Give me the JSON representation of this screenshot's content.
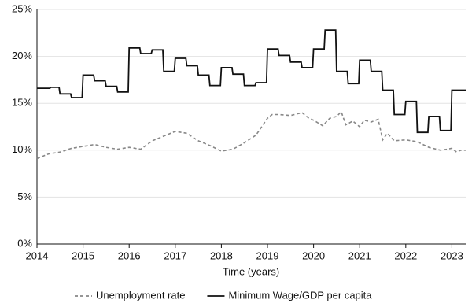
{
  "chart_data": {
    "type": "line",
    "xlabel": "Time (years)",
    "xlim": [
      2014,
      2023.3
    ],
    "xticks": [
      2014,
      2015,
      2016,
      2017,
      2018,
      2019,
      2020,
      2021,
      2022,
      2023
    ],
    "ylim": [
      0,
      25
    ],
    "yticks": [
      {
        "value": 0,
        "label": "0%"
      },
      {
        "value": 5,
        "label": "5%"
      },
      {
        "value": 10,
        "label": "10%"
      },
      {
        "value": 15,
        "label": "15%"
      },
      {
        "value": 20,
        "label": "20%"
      },
      {
        "value": 25,
        "label": "25%"
      }
    ],
    "grid": true,
    "legend": "bottom",
    "series": [
      {
        "name": "Unemployment rate",
        "color": "#888888",
        "dash": true,
        "x": [
          2014.0,
          2014.25,
          2014.5,
          2014.75,
          2015.0,
          2015.25,
          2015.5,
          2015.75,
          2016.0,
          2016.25,
          2016.5,
          2016.75,
          2017.0,
          2017.25,
          2017.5,
          2017.75,
          2018.0,
          2018.25,
          2018.5,
          2018.75,
          2019.0,
          2019.1,
          2019.25,
          2019.5,
          2019.75,
          2019.9,
          2020.0,
          2020.2,
          2020.35,
          2020.5,
          2020.6,
          2020.7,
          2020.85,
          2021.0,
          2021.1,
          2021.25,
          2021.4,
          2021.5,
          2021.6,
          2021.75,
          2022.0,
          2022.25,
          2022.5,
          2022.75,
          2022.9,
          2023.0,
          2023.1,
          2023.2,
          2023.3
        ],
        "values": [
          9.1,
          9.6,
          9.8,
          10.2,
          10.4,
          10.6,
          10.3,
          10.1,
          10.3,
          10.1,
          11.0,
          11.5,
          12.0,
          11.8,
          11.0,
          10.5,
          9.9,
          10.1,
          10.8,
          11.6,
          13.4,
          13.8,
          13.8,
          13.7,
          14.0,
          13.4,
          13.2,
          12.6,
          13.4,
          13.6,
          14.1,
          12.7,
          13.1,
          12.5,
          13.2,
          13.0,
          13.3,
          11.1,
          11.8,
          11.0,
          11.1,
          10.9,
          10.3,
          10.0,
          10.1,
          10.2,
          9.8,
          10.0,
          10.0
        ]
      },
      {
        "name": "Minimum Wage/GDP per capita",
        "color": "#111111",
        "dash": false,
        "x": [
          2014.0,
          2014.28,
          2014.3,
          2014.48,
          2014.5,
          2014.73,
          2014.75,
          2014.98,
          2015.0,
          2015.23,
          2015.25,
          2015.48,
          2015.5,
          2015.73,
          2015.75,
          2015.98,
          2016.0,
          2016.23,
          2016.25,
          2016.48,
          2016.5,
          2016.73,
          2016.75,
          2016.98,
          2017.0,
          2017.23,
          2017.25,
          2017.48,
          2017.5,
          2017.73,
          2017.75,
          2017.98,
          2018.0,
          2018.23,
          2018.25,
          2018.48,
          2018.5,
          2018.73,
          2018.75,
          2018.98,
          2019.0,
          2019.23,
          2019.25,
          2019.48,
          2019.5,
          2019.73,
          2019.75,
          2019.98,
          2020.0,
          2020.23,
          2020.25,
          2020.48,
          2020.5,
          2020.73,
          2020.75,
          2020.98,
          2021.0,
          2021.23,
          2021.25,
          2021.48,
          2021.5,
          2021.73,
          2021.75,
          2021.98,
          2022.0,
          2022.23,
          2022.25,
          2022.48,
          2022.5,
          2022.73,
          2022.75,
          2022.98,
          2023.0,
          2023.3
        ],
        "values": [
          16.6,
          16.6,
          16.7,
          16.7,
          16.0,
          16.0,
          15.6,
          15.6,
          18.0,
          18.0,
          17.4,
          17.4,
          16.8,
          16.8,
          16.2,
          16.2,
          20.9,
          20.9,
          20.3,
          20.3,
          20.7,
          20.7,
          18.4,
          18.4,
          19.8,
          19.8,
          19.0,
          19.0,
          18.0,
          18.0,
          16.9,
          16.9,
          18.8,
          18.8,
          18.1,
          18.1,
          16.9,
          16.9,
          17.2,
          17.2,
          20.8,
          20.8,
          20.1,
          20.1,
          19.4,
          19.4,
          18.8,
          18.8,
          20.8,
          20.8,
          22.8,
          22.8,
          18.4,
          18.4,
          17.1,
          17.1,
          19.6,
          19.6,
          18.4,
          18.4,
          16.4,
          16.4,
          13.8,
          13.8,
          15.2,
          15.2,
          11.9,
          11.9,
          13.6,
          13.6,
          12.1,
          12.1,
          16.4,
          16.4
        ]
      }
    ]
  }
}
